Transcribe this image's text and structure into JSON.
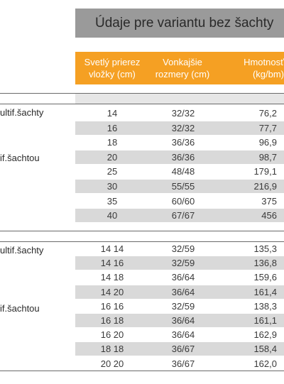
{
  "title": "Údaje pre variantu bez šachty",
  "headers": {
    "col1": [
      "Svetlý prierez",
      "vložky (cm)"
    ],
    "col2": [
      "Vonkajšie",
      "rozmery (cm)"
    ],
    "col3": [
      "Hmotnosť",
      "(kg/bm)"
    ]
  },
  "section1": {
    "label_a": "ultif.šachty",
    "label_b": "if.šachtou",
    "rows": [
      [
        "14",
        "32/32",
        "76,2"
      ],
      [
        "16",
        "32/32",
        "77,7"
      ],
      [
        "18",
        "36/36",
        "96,9"
      ],
      [
        "20",
        "36/36",
        "98,7"
      ],
      [
        "25",
        "48/48",
        "179,1"
      ],
      [
        "30",
        "55/55",
        "216,9"
      ],
      [
        "35",
        "60/60",
        "375"
      ],
      [
        "40",
        "67/67",
        "456"
      ]
    ]
  },
  "section2": {
    "label_a": "ultif.šachty",
    "label_b": "if.šachtou",
    "rows": [
      [
        "14 14",
        "32/59",
        "135,3"
      ],
      [
        "14 16",
        "32/59",
        "136,8"
      ],
      [
        "14 18",
        "36/64",
        "159,6"
      ],
      [
        "14 20",
        "36/64",
        "161,4"
      ],
      [
        "16 16",
        "32/59",
        "138,3"
      ],
      [
        "16 18",
        "36/64",
        "161,1"
      ],
      [
        "16 20",
        "36/64",
        "162,9"
      ],
      [
        "18 18",
        "36/67",
        "158,4"
      ],
      [
        "20 20",
        "36/67",
        "162,0"
      ]
    ]
  }
}
